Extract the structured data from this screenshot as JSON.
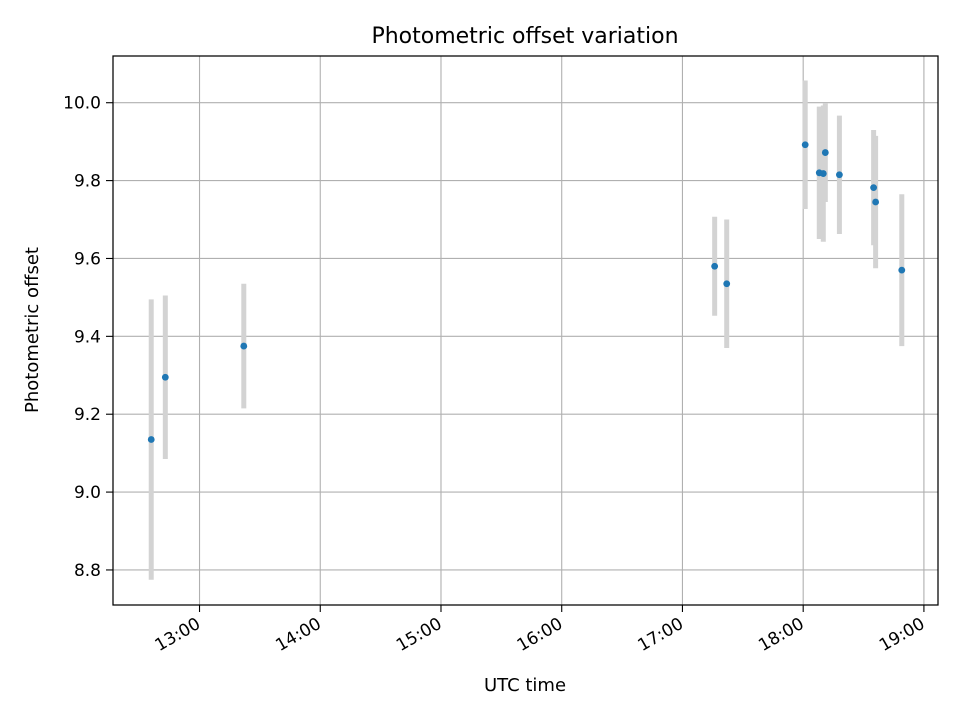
{
  "chart_data": {
    "type": "scatter",
    "title": "Photometric offset variation",
    "xlabel": "UTC time",
    "ylabel": "Photometric offset",
    "x_ticks": [
      "13:00",
      "14:00",
      "15:00",
      "16:00",
      "17:00",
      "18:00",
      "19:00"
    ],
    "y_ticks": [
      "8.8",
      "9.0",
      "9.2",
      "9.4",
      "9.6",
      "9.8",
      "10.0"
    ],
    "xlim": [
      "12:17",
      "19:07"
    ],
    "ylim": [
      8.71,
      10.12
    ],
    "grid": true,
    "colors": {
      "points": "#1f77b4",
      "errorbars": "#d3d3d3",
      "grid": "#b0b0b0"
    },
    "points": [
      {
        "x": "12:36",
        "y": 9.135,
        "yerr": 0.36
      },
      {
        "x": "12:43",
        "y": 9.295,
        "yerr": 0.21
      },
      {
        "x": "13:22",
        "y": 9.375,
        "yerr": 0.16
      },
      {
        "x": "17:16",
        "y": 9.58,
        "yerr": 0.127
      },
      {
        "x": "17:22",
        "y": 9.535,
        "yerr": 0.165
      },
      {
        "x": "18:01",
        "y": 9.892,
        "yerr": 0.165
      },
      {
        "x": "18:08",
        "y": 9.82,
        "yerr": 0.17
      },
      {
        "x": "18:10",
        "y": 9.818,
        "yerr": 0.175
      },
      {
        "x": "18:11",
        "y": 9.872,
        "yerr": 0.127
      },
      {
        "x": "18:18",
        "y": 9.815,
        "yerr": 0.152
      },
      {
        "x": "18:35",
        "y": 9.782,
        "yerr": 0.148
      },
      {
        "x": "18:36",
        "y": 9.745,
        "yerr": 0.17
      },
      {
        "x": "18:49",
        "y": 9.57,
        "yerr": 0.195
      }
    ]
  }
}
